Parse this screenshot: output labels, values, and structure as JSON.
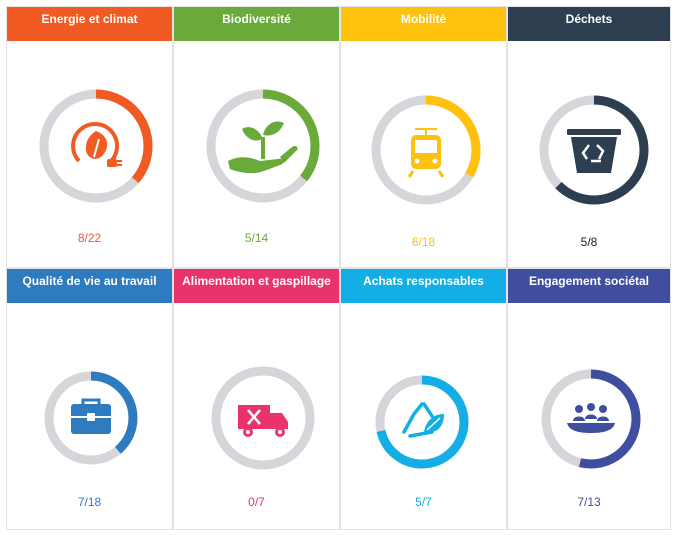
{
  "cards": [
    {
      "title": "Energie et climat",
      "score_text": "8/22",
      "done": 8,
      "total": 22,
      "color": "#f15a22",
      "score_color": "#f15a22",
      "icon": "energy-plug-leaf-icon"
    },
    {
      "title": "Biodiversité",
      "score_text": "5/14",
      "done": 5,
      "total": 14,
      "color": "#6aaa3a",
      "score_color": "#6aaa3a",
      "icon": "plant-in-hand-icon"
    },
    {
      "title": "Mobilité",
      "score_text": "6/18",
      "done": 6,
      "total": 18,
      "color": "#fdc10e",
      "score_color": "#fdc10e",
      "icon": "tram-icon"
    },
    {
      "title": "Déchets",
      "score_text": "5/8",
      "done": 5,
      "total": 8,
      "color": "#2c3e50",
      "score_color": "#1f1f1f",
      "icon": "recycle-bin-icon"
    },
    {
      "title": "Qualité de vie au travail",
      "score_text": "7/18",
      "done": 7,
      "total": 18,
      "color": "#2e7bbf",
      "score_color": "#2e7bbf",
      "icon": "briefcase-icon"
    },
    {
      "title": "Alimentation et gaspillage",
      "score_text": "0/7",
      "done": 0,
      "total": 7,
      "color": "#e8336b",
      "score_color": "#e8336b",
      "icon": "food-truck-icon"
    },
    {
      "title": "Achats responsables",
      "score_text": "5/7",
      "done": 5,
      "total": 7,
      "color": "#13aee6",
      "score_color": "#13aee6",
      "icon": "recycle-leaf-icon"
    },
    {
      "title": "Engagement sociétal",
      "score_text": "7/13",
      "done": 7,
      "total": 13,
      "color": "#3f4e9e",
      "score_color": "#3f4e9e",
      "icon": "community-meeting-icon"
    }
  ],
  "track_color": "#d5d5da"
}
